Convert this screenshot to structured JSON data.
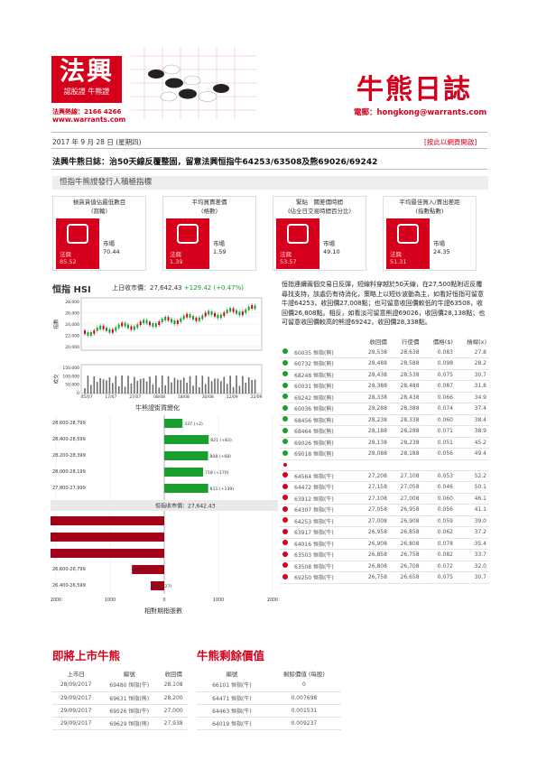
{
  "header": {
    "logo_main": "法興",
    "logo_sub": "認股證 牛熊證",
    "hotline": "法興熱線：2166 4266",
    "website": "www.warrants.com",
    "title": "牛熊日誌",
    "email": "電郵：hongkong@warrants.com",
    "date": "2017 年 9 月 28 日 (星期四)",
    "subscribe": "[按此以網頁開啟]",
    "headline": "法興牛熊日誌：治50天線反覆整固，留意法興恒指牛64253/63508及熊69026/69242"
  },
  "indicators": {
    "title": "恒指牛熊證發行人積極指標",
    "cards": [
      {
        "label_l1": "槓貨貨值佔最低數目",
        "label_l2": "(窩輪)",
        "issuer_label": "法興",
        "issuer_value": "85.52",
        "market_label": "市場",
        "market_value": "70.44"
      },
      {
        "label_l1": "平均買賣差價",
        "label_l2": "(格數)",
        "issuer_label": "法興",
        "issuer_value": "1.39",
        "market_label": "市場",
        "market_value": "1.59"
      },
      {
        "label_l1": "緊貼　關差價時間",
        "label_l2": "(佔全日交易時間百分比)",
        "issuer_label": "法興",
        "issuer_value": "53.57",
        "market_label": "市場",
        "market_value": "49.10"
      },
      {
        "label_l1": "平均最佳買入/賣出差距",
        "label_l2": "(指數點數)",
        "issuer_label": "法興",
        "issuer_value": "51.31",
        "market_label": "市場",
        "market_value": "24.35"
      }
    ]
  },
  "hsi": {
    "title": "恒指 HSI",
    "close_label": "上日收市價：27,642.43",
    "change": "+129.42 (+0.47%)",
    "y_label": "指數",
    "vol_label": "成交",
    "ticks_y": [
      "28,000",
      "26,000",
      "24,000",
      "22,000",
      "20,000"
    ],
    "ticks_vol": [
      "150,000",
      "100,000",
      "50,000",
      "0"
    ],
    "ticks_x": [
      "05/07",
      "17/07",
      "27/07",
      "08/08",
      "18/08",
      "30/08",
      "12/09",
      "22/09"
    ]
  },
  "commentary": "恒指連續兩個交易日反彈，短線料穿越於50天線，在27,500點附近反覆尋找支持，該處仍有待消化，策略上以短炒波動為主，如看好恒指可留意牛證64253，收回價27,008點；也可留意收回價較低的牛證63508，收回價26,808點。相反，如看淡可留意熊證69026，收回價28,138點；也可留意收回價較高的熊證69242，收回價28,338點。",
  "cbbc_table": {
    "headers": [
      "",
      "",
      "收回價",
      "行使價",
      "價格($)",
      "槓桿(x)"
    ],
    "bulls_above": [
      {
        "code": "60035 恒指(熊)",
        "call": "28,538",
        "strike": "28,638",
        "price": "0.083",
        "lev": "27.8"
      },
      {
        "code": "60732 恒指(熊)",
        "call": "28,488",
        "strike": "28,588",
        "price": "0.098",
        "lev": "28.2"
      },
      {
        "code": "68248 恒指(熊)",
        "call": "28,438",
        "strike": "28,538",
        "price": "0.075",
        "lev": "30.7"
      },
      {
        "code": "60031 恒指(熊)",
        "call": "28,388",
        "strike": "28,488",
        "price": "0.087",
        "lev": "31.8"
      },
      {
        "code": "69242 恒指(熊)",
        "call": "28,338",
        "strike": "28,438",
        "price": "0.066",
        "lev": "34.9"
      },
      {
        "code": "60036 恒指(熊)",
        "call": "28,288",
        "strike": "28,388",
        "price": "0.074",
        "lev": "37.4"
      },
      {
        "code": "68456 恒指(熊)",
        "call": "28,238",
        "strike": "28,338",
        "price": "0.060",
        "lev": "38.4"
      },
      {
        "code": "68464 恒指(熊)",
        "call": "28,188",
        "strike": "28,288",
        "price": "0.071",
        "lev": "38.9"
      },
      {
        "code": "69026 恒指(熊)",
        "call": "28,138",
        "strike": "28,238",
        "price": "0.051",
        "lev": "45.2"
      },
      {
        "code": "69018 恒指(熊)",
        "call": "28,088",
        "strike": "28,188",
        "price": "0.056",
        "lev": "49.4"
      }
    ],
    "bulls_below": [
      {
        "code": "64564 恒指(牛)",
        "call": "27,208",
        "strike": "27,108",
        "price": "0.053",
        "lev": "52.2"
      },
      {
        "code": "64472 恒指(牛)",
        "call": "27,158",
        "strike": "27,058",
        "price": "0.046",
        "lev": "50.1"
      },
      {
        "code": "63912 恒指(牛)",
        "call": "27,108",
        "strike": "27,008",
        "price": "0.060",
        "lev": "46.1"
      },
      {
        "code": "64307 恒指(牛)",
        "call": "27,058",
        "strike": "26,958",
        "price": "0.056",
        "lev": "41.1"
      },
      {
        "code": "64253 恒指(牛)",
        "call": "27,008",
        "strike": "26,908",
        "price": "0.059",
        "lev": "39.0"
      },
      {
        "code": "63917 恒指(牛)",
        "call": "26,958",
        "strike": "26,858",
        "price": "0.062",
        "lev": "37.2"
      },
      {
        "code": "64016 恒指(牛)",
        "call": "26,908",
        "strike": "26,808",
        "price": "0.078",
        "lev": "35.4"
      },
      {
        "code": "63503 恒指(牛)",
        "call": "26,858",
        "strike": "26,758",
        "price": "0.082",
        "lev": "33.7"
      },
      {
        "code": "63508 恒指(牛)",
        "call": "26,808",
        "strike": "26,708",
        "price": "0.072",
        "lev": "32.0"
      },
      {
        "code": "69250 恒指(牛)",
        "call": "26,758",
        "strike": "26,658",
        "price": "0.075",
        "lev": "30.7"
      }
    ]
  },
  "distribution": {
    "title": "牛熊證街貨變化",
    "axis_title": "相對期指張數",
    "close_marker": "恒指收市價：27,642.43",
    "ticks_x": [
      "3000",
      "2000",
      "1000",
      "0",
      "1000",
      "2000",
      "3000"
    ],
    "colors": {
      "bear": "#1a9e2e",
      "bull": "#a3001a"
    },
    "bears": [
      {
        "range": "28,600-28,799",
        "value": 337,
        "label": "337 (+2)"
      },
      {
        "range": "28,400-28,599",
        "value": 821,
        "label": "821 (+83)"
      },
      {
        "range": "28,200-28,399",
        "value": 808,
        "label": "808 (+68)"
      },
      {
        "range": "28,000-28,199",
        "value": 718,
        "label": "718 (+170)"
      },
      {
        "range": "27,800-27,999",
        "value": 811,
        "label": "811 (+139)"
      }
    ],
    "bulls": [
      {
        "range": "27,200-27,399",
        "value": 3574,
        "label": "3574 (+368)"
      },
      {
        "range": "27,000-27,199",
        "value": 3883,
        "label": "3883 (-282)"
      },
      {
        "range": "26,800-26,999",
        "value": 3231,
        "label": "3231 (-262)"
      },
      {
        "range": "26,600-26,799",
        "value": 597,
        "label": "597 (-31)"
      },
      {
        "range": "26,400-26,599",
        "value": 250,
        "label": "250 (-27)"
      }
    ]
  },
  "upcoming": {
    "title": "即將上市牛熊",
    "headers": [
      "上市日",
      "編號",
      "收回價"
    ],
    "rows": [
      [
        "28/09/2017",
        "69480 恒指(牛)",
        "28,108"
      ],
      [
        "29/09/2017",
        "69631 恒指(熊)",
        "28,200"
      ],
      [
        "29/09/2017",
        "69526 恒指(牛)",
        "27,000"
      ],
      [
        "29/09/2017",
        "69629 恒指(熊)",
        "27,938"
      ]
    ]
  },
  "residual": {
    "title": "牛熊剩餘價值",
    "headers": [
      "編號",
      "剩餘價值 (每股)"
    ],
    "rows": [
      [
        "66101 恒指(牛)",
        "0"
      ],
      [
        "64471 恒指(牛)",
        "0.007698"
      ],
      [
        "64463 恒指(牛)",
        "0.001531"
      ],
      [
        "64019 恒指(牛)",
        "0.009237"
      ]
    ]
  }
}
